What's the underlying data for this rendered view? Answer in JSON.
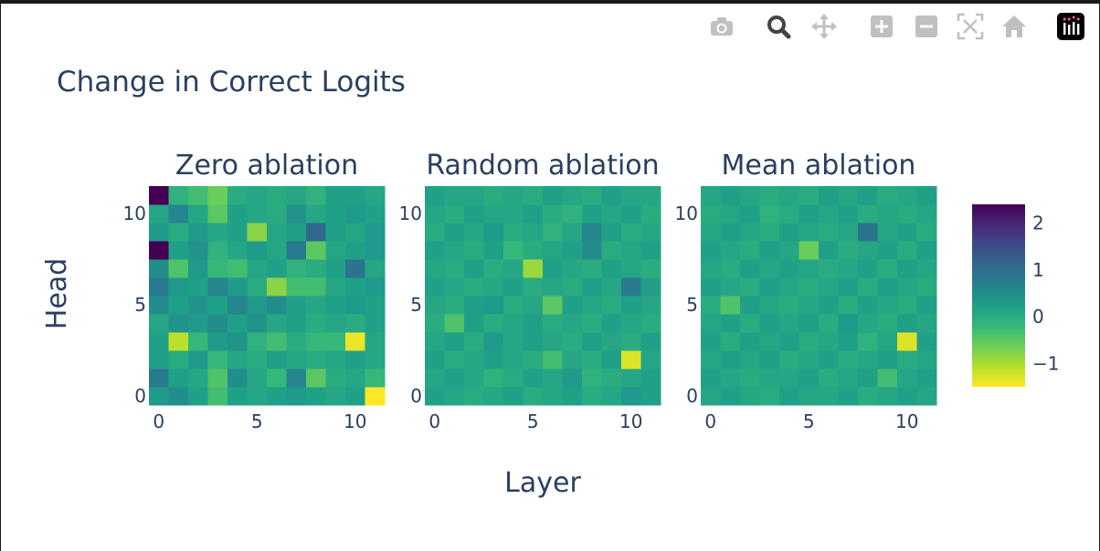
{
  "modebar": {
    "buttons": [
      {
        "name": "camera-icon",
        "color": "#c0c0c0"
      },
      {
        "name": "zoom-icon",
        "color": "#444444"
      },
      {
        "name": "pan-icon",
        "color": "#c0c0c0"
      },
      {
        "name": "zoom-in-icon",
        "color": "#c0c0c0"
      },
      {
        "name": "zoom-out-icon",
        "color": "#c0c0c0"
      },
      {
        "name": "autoscale-icon",
        "color": "#c0c0c0"
      },
      {
        "name": "reset-axes-icon",
        "color": "#c0c0c0"
      },
      {
        "name": "plotly-logo-icon",
        "color": "#000000"
      }
    ]
  },
  "chart_data": {
    "type": "heatmap",
    "title": "Change in Correct Logits",
    "xlabel": "Layer",
    "ylabel": "Head",
    "colorscale": "viridis_r",
    "zlim": [
      -1.5,
      2.4
    ],
    "colorbar_ticks": [
      "2",
      "1",
      "0",
      "−1"
    ],
    "colorbar_tick_values": [
      2,
      1,
      0,
      -1
    ],
    "x_ticks": [
      0,
      5,
      10
    ],
    "y_ticks": [
      0,
      5,
      10
    ],
    "x_tick_labels": [
      "0",
      "5",
      "10"
    ],
    "y_tick_labels": [
      "0",
      "5",
      "10"
    ],
    "panels": [
      {
        "title": "Zero ablation",
        "z": [
          [
            0.3,
            0.5,
            0.2,
            -0.3,
            0.2,
            0.1,
            0.2,
            0.3,
            0.2,
            0.1,
            0.2,
            -1.5
          ],
          [
            0.8,
            0.2,
            0.1,
            -0.4,
            0.5,
            0.1,
            -0.2,
            0.6,
            -0.5,
            0.0,
            0.1,
            -0.2
          ],
          [
            0.2,
            0.0,
            0.3,
            -0.2,
            0.1,
            0.0,
            0.2,
            0.1,
            0.0,
            0.1,
            0.2,
            0.1
          ],
          [
            0.2,
            -1.1,
            -0.2,
            0.3,
            0.4,
            -0.1,
            -0.3,
            0.0,
            -0.2,
            -0.2,
            -1.4,
            0.1
          ],
          [
            0.1,
            0.4,
            0.3,
            0.5,
            0.2,
            0.4,
            0.1,
            0.2,
            0.0,
            0.1,
            0.0,
            0.2
          ],
          [
            0.5,
            0.2,
            0.4,
            0.2,
            0.6,
            0.3,
            0.5,
            0.2,
            0.1,
            0.2,
            0.3,
            0.2
          ],
          [
            0.8,
            0.3,
            0.2,
            0.6,
            0.3,
            0.0,
            -0.8,
            -0.3,
            -0.3,
            0.1,
            0.2,
            0.3
          ],
          [
            0.5,
            -0.4,
            0.3,
            -0.2,
            -0.3,
            0.1,
            0.2,
            -0.1,
            0.0,
            0.2,
            0.9,
            0.1
          ],
          [
            2.4,
            0.2,
            0.4,
            -0.1,
            0.1,
            0.3,
            0.1,
            0.8,
            -0.5,
            0.1,
            0.2,
            0.3
          ],
          [
            0.3,
            0.0,
            0.3,
            0.1,
            0.2,
            -0.8,
            0.1,
            0.2,
            1.1,
            0.2,
            0.1,
            0.3
          ],
          [
            0.1,
            0.6,
            0.1,
            -0.5,
            0.2,
            0.1,
            0.0,
            0.4,
            0.1,
            0.2,
            0.3,
            0.2
          ],
          [
            2.4,
            -0.1,
            -0.3,
            -0.6,
            0.0,
            0.1,
            0.0,
            0.1,
            -0.1,
            0.2,
            0.2,
            0.1
          ]
        ]
      },
      {
        "title": "Random ablation",
        "z": [
          [
            0.2,
            0.1,
            0.0,
            0.1,
            0.2,
            0.0,
            0.1,
            0.2,
            0.0,
            0.1,
            0.3,
            0.2
          ],
          [
            0.1,
            0.2,
            0.1,
            -0.1,
            0.0,
            0.2,
            0.1,
            0.3,
            -0.1,
            0.0,
            0.1,
            0.2
          ],
          [
            0.2,
            0.0,
            0.1,
            0.2,
            0.1,
            0.0,
            -0.3,
            0.1,
            0.0,
            0.2,
            -1.3,
            0.1
          ],
          [
            0.1,
            0.2,
            0.0,
            0.3,
            0.1,
            0.2,
            0.1,
            0.0,
            0.2,
            0.1,
            0.0,
            0.2
          ],
          [
            0.0,
            -0.4,
            0.2,
            0.0,
            0.1,
            0.2,
            0.0,
            0.1,
            0.0,
            0.2,
            0.1,
            0.0
          ],
          [
            0.1,
            0.0,
            0.2,
            0.3,
            0.0,
            0.1,
            -0.5,
            0.2,
            0.1,
            0.0,
            0.2,
            0.1
          ],
          [
            0.2,
            0.1,
            0.0,
            0.1,
            0.2,
            0.0,
            0.1,
            0.0,
            0.2,
            0.1,
            0.8,
            0.2
          ],
          [
            0.1,
            0.0,
            0.2,
            0.0,
            0.1,
            -0.9,
            0.2,
            0.1,
            0.0,
            0.2,
            0.1,
            0.0
          ],
          [
            0.2,
            0.1,
            0.0,
            0.2,
            -0.2,
            0.0,
            0.1,
            0.2,
            0.5,
            0.0,
            0.1,
            0.2
          ],
          [
            0.0,
            0.2,
            0.1,
            0.3,
            0.0,
            0.1,
            -0.1,
            0.1,
            0.6,
            0.2,
            0.0,
            0.1
          ],
          [
            0.1,
            0.0,
            0.2,
            0.1,
            0.1,
            0.2,
            0.0,
            -0.1,
            0.2,
            0.1,
            0.2,
            0.0
          ],
          [
            0.2,
            0.1,
            0.1,
            0.0,
            0.1,
            0.0,
            0.2,
            0.1,
            0.0,
            0.2,
            0.1,
            0.1
          ]
        ]
      },
      {
        "title": "Mean ablation",
        "z": [
          [
            0.1,
            0.2,
            0.1,
            0.0,
            0.2,
            0.1,
            0.1,
            0.2,
            0.0,
            0.1,
            0.2,
            0.1
          ],
          [
            0.2,
            0.1,
            0.0,
            0.1,
            0.1,
            0.2,
            0.0,
            0.1,
            0.2,
            -0.3,
            0.1,
            0.2
          ],
          [
            0.1,
            0.2,
            0.1,
            0.2,
            0.0,
            0.1,
            0.2,
            0.0,
            0.1,
            0.2,
            0.0,
            0.1
          ],
          [
            0.2,
            0.0,
            0.2,
            0.1,
            0.2,
            0.0,
            0.1,
            0.2,
            -0.1,
            0.1,
            -1.3,
            0.2
          ],
          [
            0.1,
            0.2,
            0.0,
            0.2,
            0.1,
            0.2,
            0.0,
            0.3,
            0.1,
            0.0,
            0.2,
            0.1
          ],
          [
            0.0,
            -0.4,
            0.2,
            0.1,
            0.0,
            0.1,
            0.2,
            0.0,
            0.2,
            0.1,
            0.0,
            0.2
          ],
          [
            0.2,
            0.1,
            0.0,
            0.2,
            0.1,
            0.0,
            0.1,
            0.2,
            0.0,
            0.2,
            0.1,
            0.0
          ],
          [
            0.1,
            0.0,
            0.2,
            0.1,
            0.2,
            0.1,
            0.0,
            0.1,
            0.2,
            0.0,
            0.2,
            0.1
          ],
          [
            0.2,
            0.1,
            0.0,
            0.2,
            0.1,
            -0.6,
            0.2,
            0.0,
            0.1,
            0.2,
            0.0,
            0.2
          ],
          [
            0.1,
            0.2,
            0.1,
            0.0,
            0.2,
            0.1,
            0.0,
            0.1,
            0.9,
            0.1,
            0.2,
            0.0
          ],
          [
            0.0,
            0.1,
            0.2,
            -0.1,
            0.0,
            0.2,
            0.1,
            0.2,
            0.0,
            0.1,
            0.0,
            0.1
          ],
          [
            0.1,
            0.2,
            0.1,
            0.0,
            0.1,
            0.0,
            0.2,
            0.1,
            0.2,
            0.0,
            0.1,
            0.2
          ]
        ]
      }
    ]
  }
}
